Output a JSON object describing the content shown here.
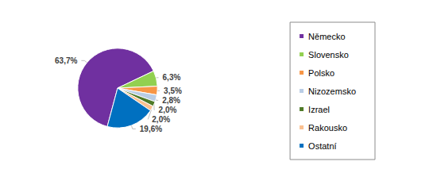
{
  "chart_data": {
    "type": "pie",
    "categories": [
      "Německo",
      "Slovensko",
      "Polsko",
      "Nizozemsko",
      "Izrael",
      "Rakousko",
      "Ostatní"
    ],
    "values": [
      63.7,
      6.3,
      3.5,
      2.8,
      2.0,
      2.0,
      19.6
    ],
    "value_labels": [
      "63,7%",
      "6,3%",
      "3,5%",
      "2,8%",
      "2,0%",
      "2,0%",
      "19,6%"
    ],
    "colors": [
      "#7030a0",
      "#92d050",
      "#f79646",
      "#b9cde5",
      "#4f7a28",
      "#fac090",
      "#0070c0"
    ],
    "data_labels": true,
    "legend": "right"
  }
}
